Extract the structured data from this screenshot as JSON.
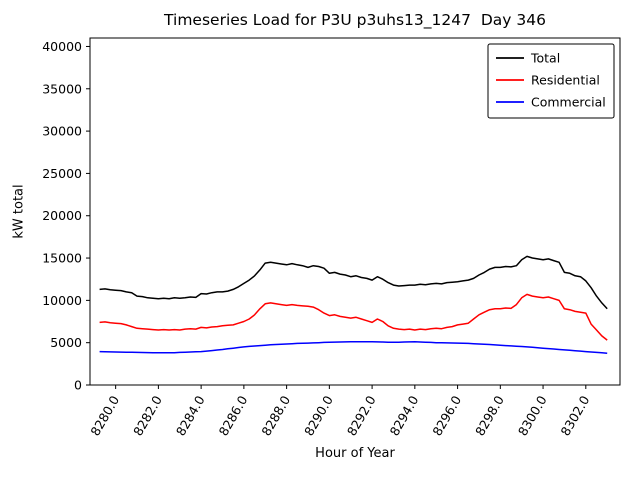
{
  "figure": {
    "background": "#ffffff"
  },
  "chart_data": {
    "type": "line",
    "title": "Timeseries Load for P3U p3uhs13_1247  Day 346",
    "xlabel": "Hour of Year",
    "ylabel": "kW total",
    "xlim": [
      8278.8,
      8303.6
    ],
    "ylim": [
      0,
      41000
    ],
    "grid": false,
    "legend_position": "upper right",
    "xticks": [
      8280,
      8282,
      8284,
      8286,
      8288,
      8290,
      8292,
      8294,
      8296,
      8298,
      8300,
      8302
    ],
    "xtick_labels": [
      "8280.0",
      "8282.0",
      "8284.0",
      "8286.0",
      "8288.0",
      "8290.0",
      "8292.0",
      "8294.0",
      "8296.0",
      "8298.0",
      "8300.0",
      "8302.0"
    ],
    "yticks": [
      0,
      5000,
      10000,
      15000,
      20000,
      25000,
      30000,
      35000,
      40000
    ],
    "ytick_labels": [
      "0",
      "5000",
      "10000",
      "15000",
      "20000",
      "25000",
      "30000",
      "35000",
      "40000"
    ],
    "x_start": 8279.25,
    "x_step": 0.25,
    "series": [
      {
        "name": "Total",
        "color": "#000000",
        "values": [
          11300,
          11350,
          11250,
          11200,
          11150,
          11000,
          10900,
          10500,
          10450,
          10300,
          10250,
          10200,
          10250,
          10200,
          10300,
          10250,
          10300,
          10400,
          10350,
          10800,
          10750,
          10900,
          11000,
          11000,
          11100,
          11300,
          11600,
          12000,
          12400,
          12900,
          13600,
          14400,
          14500,
          14400,
          14300,
          14200,
          14350,
          14200,
          14100,
          13900,
          14100,
          14000,
          13800,
          13200,
          13300,
          13100,
          13000,
          12800,
          12900,
          12700,
          12600,
          12400,
          12800,
          12500,
          12100,
          11800,
          11700,
          11750,
          11800,
          11800,
          11900,
          11850,
          11950,
          12000,
          11950,
          12100,
          12150,
          12200,
          12300,
          12400,
          12600,
          13000,
          13300,
          13700,
          13900,
          13900,
          14000,
          13950,
          14100,
          14800,
          15200,
          15000,
          14900,
          14800,
          14900,
          14700,
          14500,
          13300,
          13200,
          12900,
          12800,
          12300,
          11500,
          10500,
          9700,
          9000
        ]
      },
      {
        "name": "Residential",
        "color": "#ff0000",
        "values": [
          7400,
          7450,
          7350,
          7300,
          7250,
          7100,
          6900,
          6700,
          6650,
          6600,
          6550,
          6500,
          6550,
          6500,
          6550,
          6500,
          6600,
          6650,
          6600,
          6800,
          6750,
          6850,
          6900,
          7000,
          7050,
          7100,
          7300,
          7500,
          7800,
          8300,
          9000,
          9600,
          9700,
          9600,
          9500,
          9400,
          9500,
          9400,
          9350,
          9300,
          9200,
          8900,
          8500,
          8200,
          8300,
          8100,
          8000,
          7900,
          8000,
          7800,
          7600,
          7400,
          7800,
          7500,
          7000,
          6700,
          6600,
          6550,
          6600,
          6500,
          6600,
          6550,
          6650,
          6700,
          6650,
          6800,
          6900,
          7100,
          7200,
          7300,
          7800,
          8300,
          8600,
          8900,
          9000,
          9000,
          9100,
          9050,
          9500,
          10300,
          10700,
          10500,
          10400,
          10300,
          10400,
          10200,
          10000,
          9000,
          8900,
          8700,
          8600,
          8500,
          7200,
          6500,
          5800,
          5300
        ]
      },
      {
        "name": "Commercial",
        "color": "#0000ff",
        "values": [
          3950,
          3930,
          3910,
          3900,
          3890,
          3880,
          3860,
          3850,
          3840,
          3830,
          3810,
          3800,
          3810,
          3800,
          3820,
          3850,
          3870,
          3900,
          3920,
          3950,
          4000,
          4060,
          4130,
          4200,
          4280,
          4350,
          4430,
          4500,
          4560,
          4610,
          4660,
          4700,
          4750,
          4790,
          4820,
          4850,
          4880,
          4910,
          4930,
          4950,
          4980,
          5000,
          5030,
          5050,
          5070,
          5080,
          5090,
          5100,
          5110,
          5100,
          5110,
          5100,
          5090,
          5080,
          5060,
          5050,
          5060,
          5080,
          5090,
          5100,
          5080,
          5060,
          5030,
          5000,
          4990,
          4970,
          4960,
          4950,
          4930,
          4910,
          4880,
          4850,
          4820,
          4780,
          4740,
          4700,
          4660,
          4620,
          4580,
          4550,
          4500,
          4450,
          4400,
          4350,
          4300,
          4250,
          4200,
          4150,
          4100,
          4050,
          4000,
          3950,
          3900,
          3850,
          3800,
          3750
        ]
      }
    ]
  }
}
